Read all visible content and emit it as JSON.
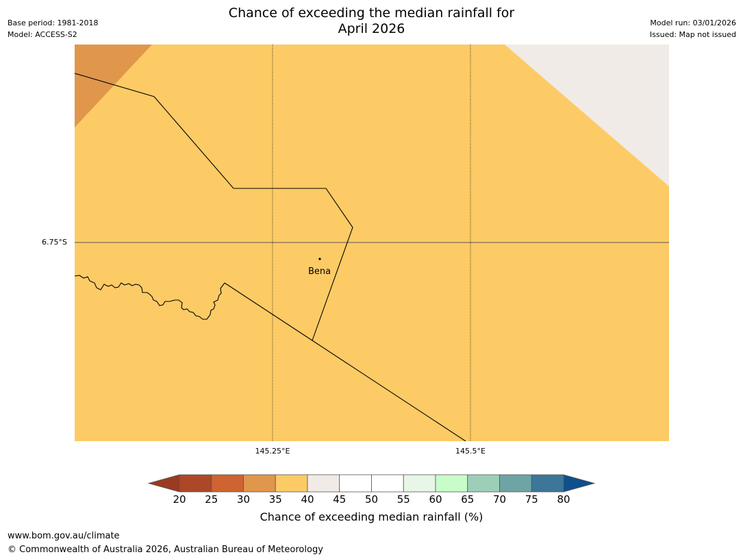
{
  "title": {
    "line1": "Chance of exceeding the median rainfall for",
    "line2": "April 2026"
  },
  "meta": {
    "base_period": "Base period: 1981-2018",
    "model": "Model: ACCESS-S2",
    "model_run": "Model run: 03/01/2026",
    "issued": "Issued: Map not issued"
  },
  "map": {
    "lat_label": "6.75°S",
    "lon_labels": [
      "145.25°E",
      "145.5°E"
    ],
    "town": "Bena",
    "fill_colors": {
      "background": "#fdcb65",
      "low": "#e0974c",
      "neutral": "#f0ebe6"
    }
  },
  "colorbar": {
    "label": "Chance of exceeding median rainfall (%)",
    "ticks": [
      "20",
      "25",
      "30",
      "35",
      "40",
      "45",
      "50",
      "55",
      "60",
      "65",
      "70",
      "75",
      "80"
    ],
    "below_color": "#9a3a22",
    "above_color": "#0f4f8c",
    "colors": [
      "#ac4827",
      "#cd6432",
      "#e0974c",
      "#fdcb65",
      "#f0ebe6",
      "#ffffff",
      "#ffffff",
      "#e7f6e7",
      "#c8fdca",
      "#9dcfb8",
      "#6ea5a4",
      "#3c7698"
    ]
  },
  "footer": {
    "url": "www.bom.gov.au/climate",
    "copyright": "© Commonwealth of Australia 2026, Australian Bureau of Meteorology"
  }
}
